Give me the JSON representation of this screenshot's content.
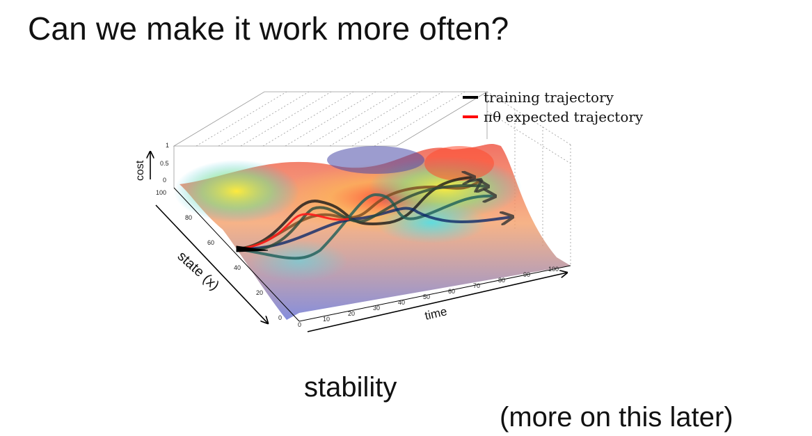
{
  "slide": {
    "title": "Can we make it work more often?",
    "word_main": "stability",
    "word_note": "(more on this later)"
  },
  "figure": {
    "legend": [
      {
        "label": "training trajectory",
        "color": "#000000"
      },
      {
        "label": "πθ expected trajectory",
        "color": "#ff0000"
      }
    ],
    "axes": {
      "cost_label": "cost",
      "state_label": "state (x)",
      "time_label": "time",
      "cost_ticks": [
        "0",
        "0.5",
        "1"
      ],
      "state_ticks": [
        "0",
        "20",
        "40",
        "60",
        "80",
        "100"
      ],
      "time_ticks": [
        "0",
        "10",
        "20",
        "30",
        "40",
        "50",
        "60",
        "70",
        "80",
        "90",
        "100"
      ]
    },
    "colors": {
      "surface_low": "#6b74d6",
      "surface_mid": "#f5e33a",
      "surface_high": "#e8413a",
      "training": "#000000",
      "expected": "#ff0000"
    }
  }
}
